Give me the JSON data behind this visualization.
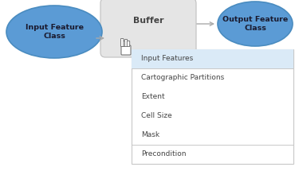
{
  "fig_width": 3.7,
  "fig_height": 2.15,
  "dpi": 100,
  "bg_color": "#ffffff",
  "ellipse_in_color": "#5b9bd5",
  "ellipse_in_border": "#4a8cc0",
  "ellipse_out_color": "#5b9bd5",
  "ellipse_out_border": "#4a8cc0",
  "ellipse_text_color": "#1a1a2e",
  "buffer_box_color": "#e5e5e5",
  "buffer_box_border": "#c0c0c0",
  "buffer_label": "Buffer",
  "buffer_label_color": "#444444",
  "input_label": "Input Feature\nClass",
  "output_label": "Output Feature\nClass",
  "dropdown_bg": "#ffffff",
  "dropdown_border": "#c8c8c8",
  "dropdown_highlight": "#daeaf7",
  "dropdown_items": [
    "Input Features",
    "Cartographic Partitions",
    "Extent",
    "Cell Size",
    "Mask",
    "Precondition"
  ],
  "dropdown_text_color": "#444444",
  "separator_after": [
    0,
    4
  ],
  "arrow_color": "#aaaaaa",
  "font_size_ellipse": 6.8,
  "font_size_buffer": 7.8,
  "font_size_dropdown": 6.5
}
